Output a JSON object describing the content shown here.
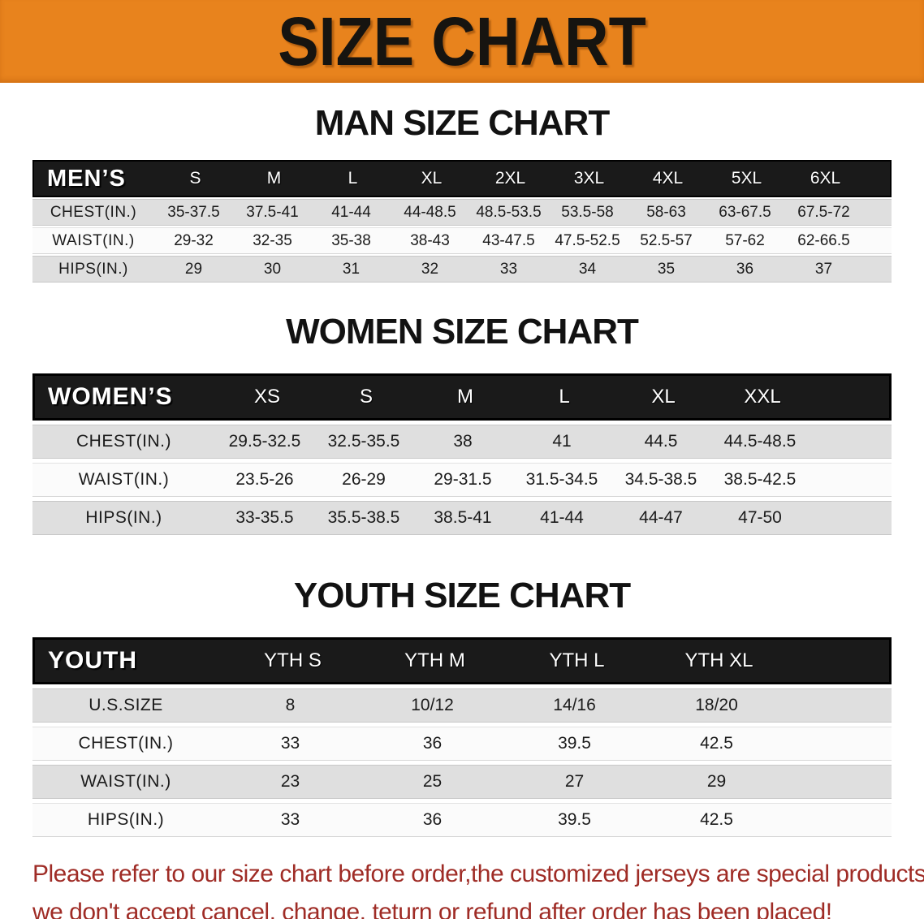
{
  "banner": {
    "title": "SIZE CHART",
    "bg_color": "#E8831D"
  },
  "men": {
    "heading": "MAN SIZE CHART",
    "header_label": "MEN’S",
    "sizes": [
      "S",
      "M",
      "L",
      "XL",
      "2XL",
      "3XL",
      "4XL",
      "5XL",
      "6XL"
    ],
    "rows": [
      {
        "label": "CHEST(IN.)",
        "values": [
          "35-37.5",
          "37.5-41",
          "41-44",
          "44-48.5",
          "48.5-53.5",
          "53.5-58",
          "58-63",
          "63-67.5",
          "67.5-72"
        ]
      },
      {
        "label": "WAIST(IN.)",
        "values": [
          "29-32",
          "32-35",
          "35-38",
          "38-43",
          "43-47.5",
          "47.5-52.5",
          "52.5-57",
          "57-62",
          "62-66.5"
        ]
      },
      {
        "label": "HIPS(IN.)",
        "values": [
          "29",
          "30",
          "31",
          "32",
          "33",
          "34",
          "35",
          "36",
          "37"
        ]
      }
    ]
  },
  "women": {
    "heading": "WOMEN SIZE CHART",
    "header_label": "WOMEN’S",
    "sizes": [
      "XS",
      "S",
      "M",
      "L",
      "XL",
      "XXL"
    ],
    "rows": [
      {
        "label": "CHEST(IN.)",
        "values": [
          "29.5-32.5",
          "32.5-35.5",
          "38",
          "41",
          "44.5",
          "44.5-48.5"
        ]
      },
      {
        "label": "WAIST(IN.)",
        "values": [
          "23.5-26",
          "26-29",
          "29-31.5",
          "31.5-34.5",
          "34.5-38.5",
          "38.5-42.5"
        ]
      },
      {
        "label": "HIPS(IN.)",
        "values": [
          "33-35.5",
          "35.5-38.5",
          "38.5-41",
          "41-44",
          "44-47",
          "47-50"
        ]
      }
    ]
  },
  "youth": {
    "heading": "YOUTH SIZE CHART",
    "header_label": "YOUTH",
    "sizes": [
      "YTH S",
      "YTH M",
      "YTH L",
      "YTH XL"
    ],
    "rows": [
      {
        "label": "U.S.SIZE",
        "values": [
          "8",
          "10/12",
          "14/16",
          "18/20"
        ]
      },
      {
        "label": "CHEST(IN.)",
        "values": [
          "33",
          "36",
          "39.5",
          "42.5"
        ]
      },
      {
        "label": "WAIST(IN.)",
        "values": [
          "23",
          "25",
          "27",
          "29"
        ]
      },
      {
        "label": "HIPS(IN.)",
        "values": [
          "33",
          "36",
          "39.5",
          "42.5"
        ]
      }
    ]
  },
  "disclaimer": {
    "line1": "Please refer to our size chart before order,the customized jerseys are special products,",
    "line2": "we don't accept cancel, change, teturn or refund after order has been placed!",
    "color": "#9F2C26"
  }
}
